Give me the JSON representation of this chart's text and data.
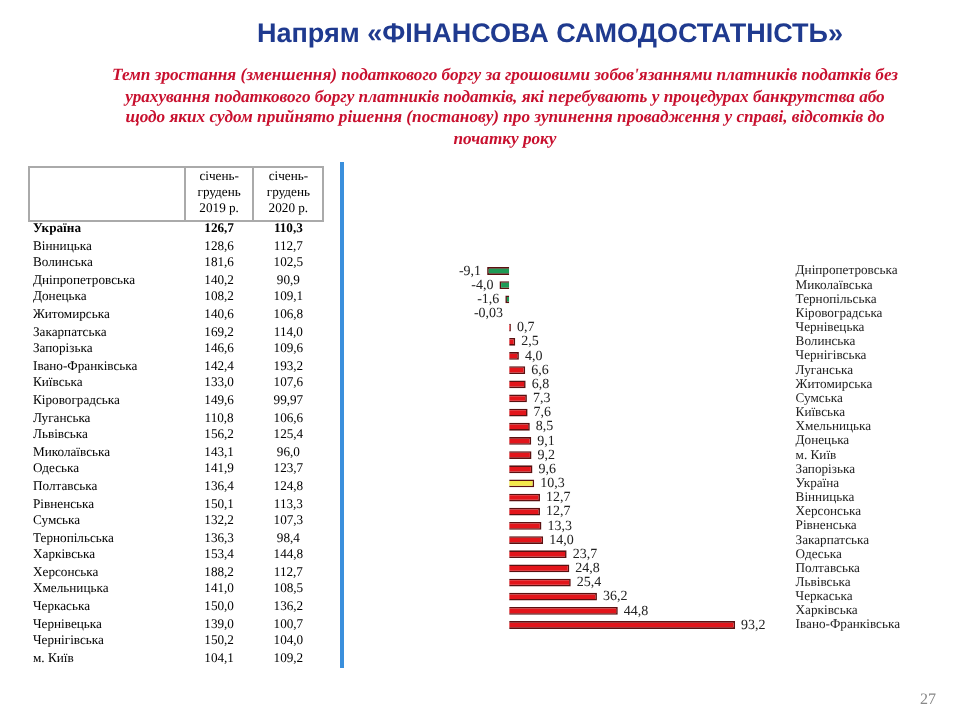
{
  "chart_data": [
    {
      "type": "other",
      "categories": [
        "Україна",
        "Вінницька",
        "Волинська",
        "Дніпропетровська",
        "Донецька",
        "Житомирська",
        "Закарпатська",
        "Запорізька",
        "Івано-Франківська",
        "Київська",
        "Кіровоградська",
        "Луганська",
        "Львівська",
        "Миколаївська",
        "Одеська",
        "Полтавська",
        "Рівненська",
        "Сумська",
        "Тернопільська",
        "Харківська",
        "Херсонська",
        "Хмельницька",
        "Черкаська",
        "Чернівецька",
        "Чернігівська",
        "м. Київ"
      ],
      "series": [
        {
          "name": "січень-грудень 2019 р.",
          "values": [
            126.7,
            128.6,
            181.6,
            140.2,
            108.2,
            140.6,
            169.2,
            146.6,
            142.4,
            133.0,
            149.6,
            110.8,
            156.2,
            143.1,
            141.9,
            136.4,
            150.1,
            132.2,
            136.3,
            153.4,
            188.2,
            141.0,
            150.0,
            139.0,
            150.2,
            104.1
          ],
          "value_labels": [
            "126,7",
            "128,6",
            "181,6",
            "140,2",
            "108,2",
            "140,6",
            "169,2",
            "146,6",
            "142,4",
            "133,0",
            "149,6",
            "110,8",
            "156,2",
            "143,1",
            "141,9",
            "136,4",
            "150,1",
            "132,2",
            "136,3",
            "153,4",
            "188,2",
            "141,0",
            "150,0",
            "139,0",
            "150,2",
            "104,1"
          ]
        },
        {
          "name": "січень-грудень 2020 р.",
          "values": [
            110.3,
            112.7,
            102.5,
            90.9,
            109.1,
            106.8,
            114.0,
            109.6,
            193.2,
            107.6,
            99.97,
            106.6,
            125.4,
            96.0,
            123.7,
            124.8,
            113.3,
            107.3,
            98.4,
            144.8,
            112.7,
            108.5,
            136.2,
            100.7,
            104.0,
            109.2
          ],
          "value_labels": [
            "110,3",
            "112,7",
            "102,5",
            "90,9",
            "109,1",
            "106,8",
            "114,0",
            "109,6",
            "193,2",
            "107,6",
            "99,97",
            "106,6",
            "125,4",
            "96,0",
            "123,7",
            "124,8",
            "113,3",
            "107,3",
            "98,4",
            "144,8",
            "112,7",
            "108,5",
            "136,2",
            "100,7",
            "104,0",
            "109,2"
          ]
        }
      ]
    },
    {
      "type": "bar",
      "orientation": "horizontal",
      "title": "Напрям «ФІНАНСОВА САМОДОСТАТНІСТЬ»",
      "subtitle": "Темп зростання (зменшення) податкового боргу за грошовими зобов'язаннями платників податків без урахування податкового боргу платників податків, які перебувають у процедурах банкрутства або щодо яких судом прийнято рішення (постанову) про зупинення провадження у справі, відсотків до початку року",
      "categories": [
        "Дніпропетровська",
        "Миколаївська",
        "Тернопільська",
        "Кіровоградська",
        "Чернівецька",
        "Волинська",
        "Чернігівська",
        "Луганська",
        "Житомирська",
        "Сумська",
        "Київська",
        "Хмельницька",
        "Донецька",
        "м. Київ",
        "Запорізька",
        "Україна",
        "Вінницька",
        "Херсонська",
        "Рівненська",
        "Закарпатська",
        "Одеська",
        "Полтавська",
        "Львівська",
        "Черкаська",
        "Харківська",
        "Івано-Франківська"
      ],
      "values": [
        -9.1,
        -4.0,
        -1.6,
        -0.03,
        0.7,
        2.5,
        4.0,
        6.6,
        6.8,
        7.3,
        7.6,
        8.5,
        9.1,
        9.2,
        9.6,
        10.3,
        12.7,
        12.7,
        13.3,
        14.0,
        23.7,
        24.8,
        25.4,
        36.2,
        44.8,
        93.2
      ],
      "value_labels": [
        "-9,1",
        "-4,0",
        "-1,6",
        "-0,03",
        "0,7",
        "2,5",
        "4,0",
        "6,6",
        "6,8",
        "7,3",
        "7,6",
        "8,5",
        "9,1",
        "9,2",
        "9,6",
        "10,3",
        "12,7",
        "12,7",
        "13,3",
        "14,0",
        "23,7",
        "24,8",
        "25,4",
        "36,2",
        "44,8",
        "93,2"
      ],
      "colors": [
        "#1e9a55",
        "#1e9a55",
        "#1e9a55",
        "#1e9a55",
        "#e3151b",
        "#e3151b",
        "#e3151b",
        "#e3151b",
        "#e3151b",
        "#e3151b",
        "#e3151b",
        "#e3151b",
        "#e3151b",
        "#e3151b",
        "#e3151b",
        "#f3e84a",
        "#e3151b",
        "#e3151b",
        "#e3151b",
        "#e3151b",
        "#e3151b",
        "#e3151b",
        "#e3151b",
        "#e3151b",
        "#e3151b",
        "#e3151b"
      ],
      "annotations": [
        "27"
      ]
    }
  ]
}
